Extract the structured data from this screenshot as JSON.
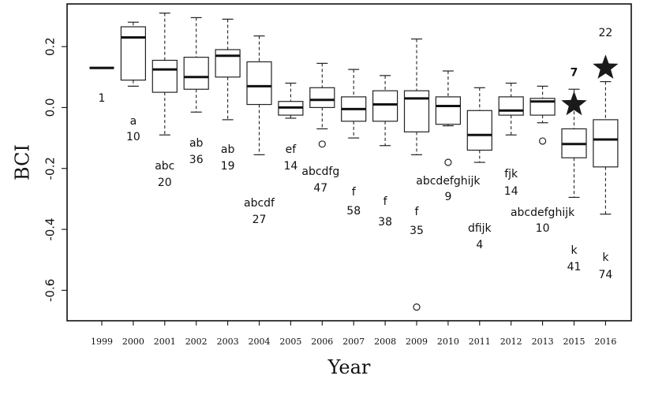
{
  "chart_data": {
    "type": "box",
    "title": "",
    "xlabel": "Year",
    "ylabel": "BCI",
    "ylim": [
      -0.7,
      0.34
    ],
    "yticks": [
      -0.6,
      -0.4,
      -0.2,
      0.0,
      0.2
    ],
    "ytick_labels": [
      "-0.6",
      "-0.4",
      "-0.2",
      "0.0",
      "0.2"
    ],
    "grid": false,
    "legend": "none",
    "categories": [
      "1999",
      "2000",
      "2001",
      "2002",
      "2003",
      "2004",
      "2005",
      "2006",
      "2007",
      "2008",
      "2009",
      "2010",
      "2011",
      "2012",
      "2013",
      "2015",
      "2016"
    ],
    "boxes": [
      {
        "year": "1999",
        "min": 0.13,
        "q1": 0.13,
        "median": 0.13,
        "q3": 0.13,
        "max": 0.13,
        "outliers": []
      },
      {
        "year": "2000",
        "min": 0.07,
        "q1": 0.09,
        "median": 0.23,
        "q3": 0.265,
        "max": 0.28,
        "outliers": []
      },
      {
        "year": "2001",
        "min": -0.09,
        "q1": 0.05,
        "median": 0.125,
        "q3": 0.155,
        "max": 0.31,
        "outliers": []
      },
      {
        "year": "2002",
        "min": -0.015,
        "q1": 0.06,
        "median": 0.1,
        "q3": 0.165,
        "max": 0.295,
        "outliers": []
      },
      {
        "year": "2003",
        "min": -0.04,
        "q1": 0.1,
        "median": 0.17,
        "q3": 0.19,
        "max": 0.29,
        "outliers": []
      },
      {
        "year": "2004",
        "min": -0.155,
        "q1": 0.01,
        "median": 0.07,
        "q3": 0.15,
        "max": 0.235,
        "outliers": []
      },
      {
        "year": "2005",
        "min": -0.035,
        "q1": -0.025,
        "median": 0.0,
        "q3": 0.02,
        "max": 0.08,
        "outliers": []
      },
      {
        "year": "2006",
        "min": -0.07,
        "q1": 0.0,
        "median": 0.025,
        "q3": 0.065,
        "max": 0.145,
        "outliers": [
          -0.12
        ]
      },
      {
        "year": "2007",
        "min": -0.1,
        "q1": -0.045,
        "median": -0.005,
        "q3": 0.035,
        "max": 0.125,
        "outliers": []
      },
      {
        "year": "2008",
        "min": -0.125,
        "q1": -0.045,
        "median": 0.01,
        "q3": 0.055,
        "max": 0.105,
        "outliers": []
      },
      {
        "year": "2009",
        "min": -0.155,
        "q1": -0.08,
        "median": 0.03,
        "q3": 0.055,
        "max": 0.225,
        "outliers": [
          -0.655
        ]
      },
      {
        "year": "2010",
        "min": -0.06,
        "q1": -0.055,
        "median": 0.005,
        "q3": 0.035,
        "max": 0.12,
        "outliers": [
          -0.18
        ]
      },
      {
        "year": "2011",
        "min": -0.18,
        "q1": -0.14,
        "median": -0.09,
        "q3": -0.01,
        "max": 0.065,
        "outliers": []
      },
      {
        "year": "2012",
        "min": -0.09,
        "q1": -0.025,
        "median": -0.01,
        "q3": 0.035,
        "max": 0.08,
        "outliers": []
      },
      {
        "year": "2013",
        "min": -0.05,
        "q1": -0.025,
        "median": 0.02,
        "q3": 0.03,
        "max": 0.07,
        "outliers": [
          -0.11
        ]
      },
      {
        "year": "2015",
        "min": -0.295,
        "q1": -0.165,
        "median": -0.12,
        "q3": -0.07,
        "max": 0.06,
        "outliers": []
      },
      {
        "year": "2016",
        "min": -0.35,
        "q1": -0.195,
        "median": -0.105,
        "q3": -0.04,
        "max": 0.085,
        "outliers": []
      }
    ],
    "stars": [
      {
        "year": "2015",
        "value": 0.01,
        "label": "7"
      },
      {
        "year": "2016",
        "value": 0.13,
        "label": "22"
      }
    ],
    "annotations": [
      {
        "year": "1999",
        "letters": "",
        "n": "1"
      },
      {
        "year": "2000",
        "letters": "a",
        "n": "10"
      },
      {
        "year": "2001",
        "letters": "abc",
        "n": "20"
      },
      {
        "year": "2002",
        "letters": "ab",
        "n": "36"
      },
      {
        "year": "2003",
        "letters": "ab",
        "n": "19"
      },
      {
        "year": "2004",
        "letters": "abcdf",
        "n": "27"
      },
      {
        "year": "2005",
        "letters": "ef",
        "n": "14"
      },
      {
        "year": "2006",
        "letters": "abcdfg",
        "n": "47"
      },
      {
        "year": "2007",
        "letters": "f",
        "n": "58"
      },
      {
        "year": "2008",
        "letters": "f",
        "n": "38"
      },
      {
        "year": "2009",
        "letters": "f",
        "n": "35"
      },
      {
        "year": "2010",
        "letters": "abcdefghijk",
        "n": "9"
      },
      {
        "year": "2011",
        "letters": "dfijk",
        "n": "4"
      },
      {
        "year": "2012",
        "letters": "fjk",
        "n": "14"
      },
      {
        "year": "2013",
        "letters": "abcdefghijk",
        "n": "10"
      },
      {
        "year": "2015",
        "letters": "k",
        "n": "41"
      },
      {
        "year": "2016",
        "letters": "k",
        "n": "74"
      }
    ]
  }
}
